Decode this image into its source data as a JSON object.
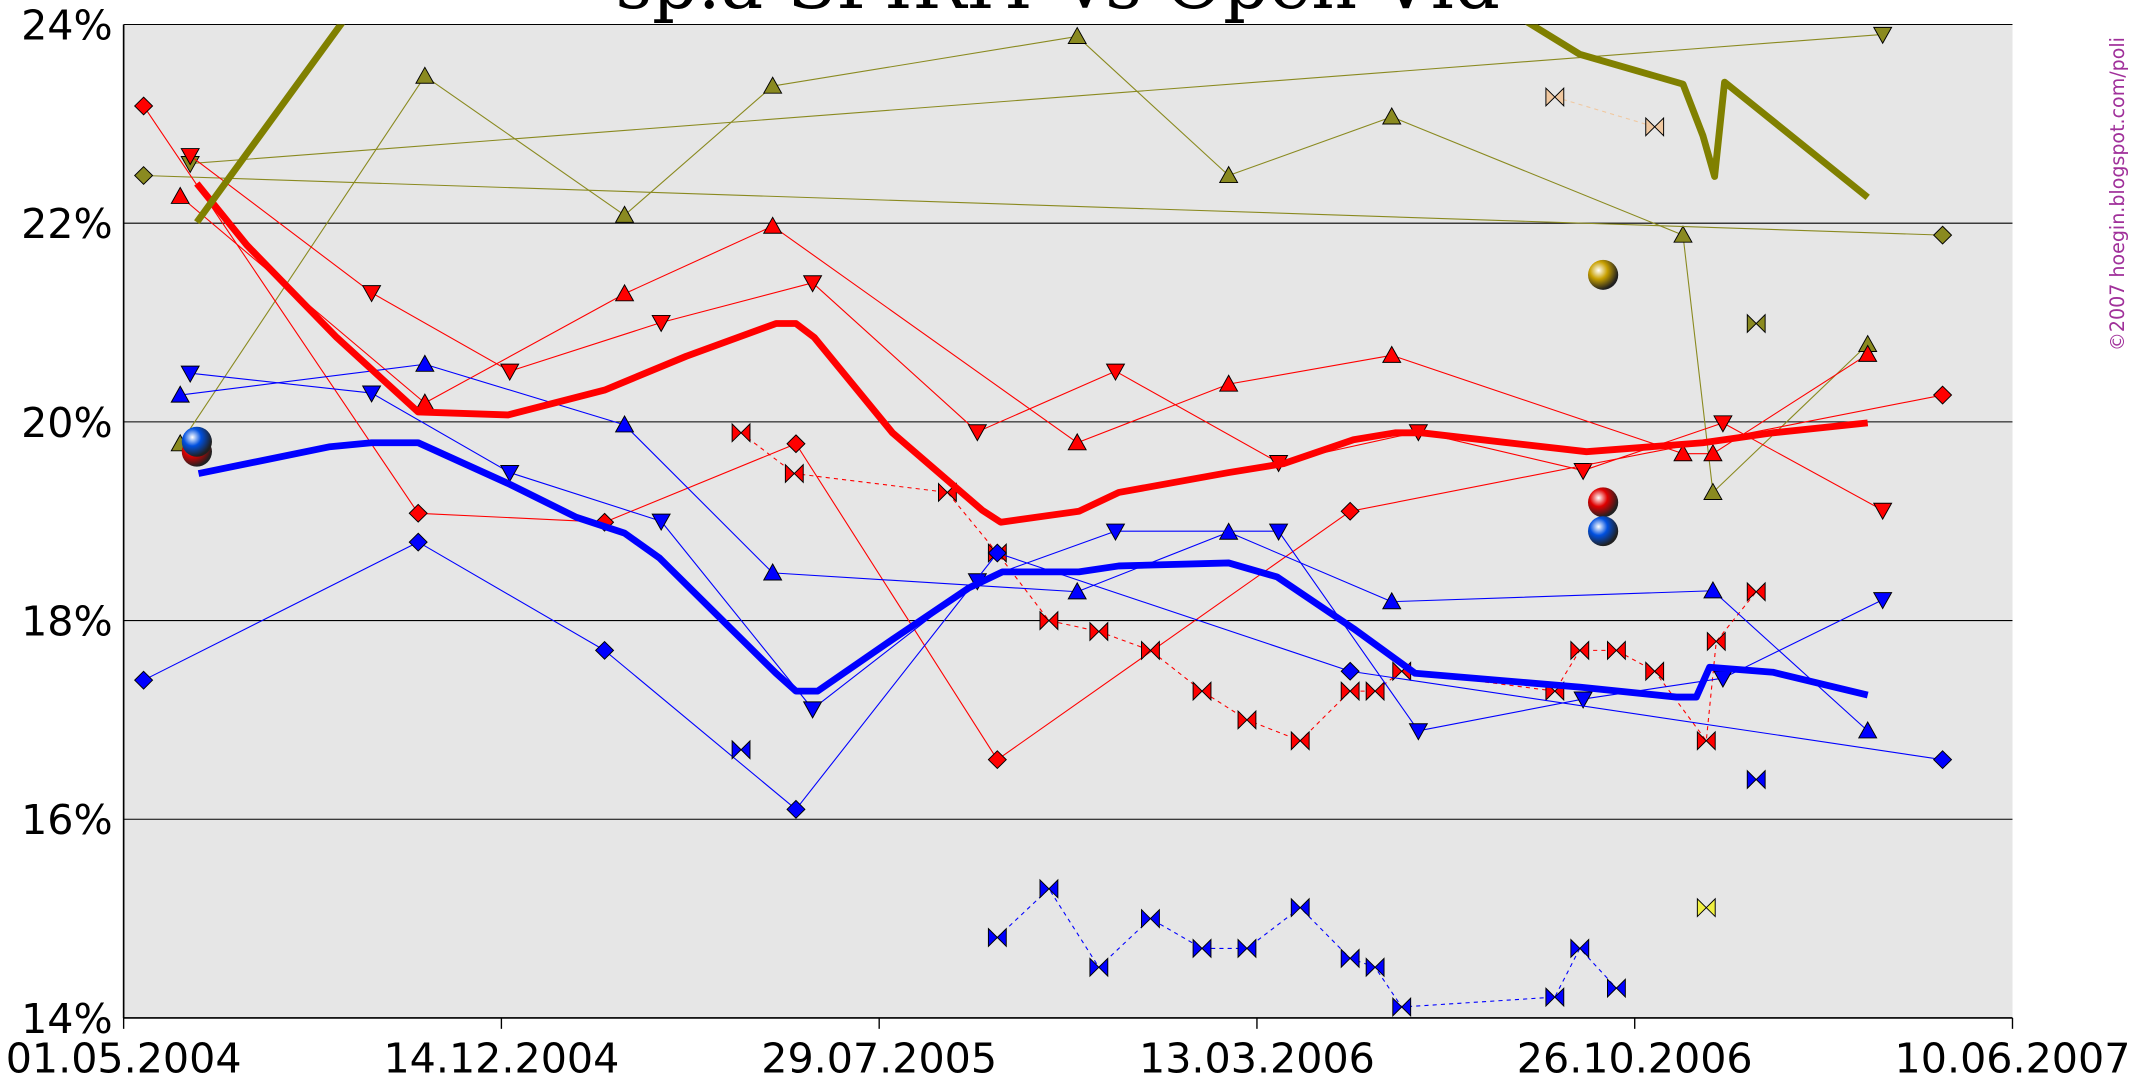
{
  "chart_data": {
    "type": "line",
    "title": "sp.a-SPIRIT vs Open Vld",
    "credit": "©2007 hoegin.blogspot.com/poli",
    "xlim": [
      "01.05.2004",
      "10.06.2007"
    ],
    "xticks": [
      "01.05.2004",
      "14.12.2004",
      "29.07.2005",
      "13.03.2006",
      "26.10.2006",
      "10.06.2007"
    ],
    "ylim": [
      14,
      24
    ],
    "yticks": [
      {
        "value": 14,
        "label": "14%"
      },
      {
        "value": 16,
        "label": "16%"
      },
      {
        "value": 18,
        "label": "18%"
      },
      {
        "value": 20,
        "label": "20%"
      },
      {
        "value": 22,
        "label": "22%"
      },
      {
        "value": 24,
        "label": "24%"
      }
    ],
    "grid": true,
    "series": [
      {
        "color": "#8a8a20",
        "line_width": 0.8,
        "dash": false,
        "marker": "triangle-up",
        "x": [
          "04.06.2004",
          "29.10.2004",
          "26.02.2005",
          "26.05.2005",
          "25.11.2005",
          "24.02.2006",
          "02.06.2006",
          "24.11.2006",
          "12.12.2006",
          "15.03.2007"
        ],
        "values": [
          19.78,
          23.48,
          22.08,
          23.38,
          23.88,
          22.48,
          23.07,
          21.88,
          19.29,
          20.78
        ]
      },
      {
        "color": "#8a8a20",
        "line_width": 0.8,
        "dash": false,
        "marker": "triangle-down",
        "x": [
          "10.06.2004",
          "24.03.2007"
        ],
        "values": [
          22.6,
          23.9
        ]
      },
      {
        "color": "#8a8a20",
        "line_width": 0.8,
        "dash": false,
        "marker": "diamond",
        "x": [
          "13.05.2004",
          "29.04.2007"
        ],
        "values": [
          22.48,
          21.88
        ]
      },
      {
        "color": "#8a8a20",
        "line_width": 0.8,
        "dash": true,
        "marker": "bowtie",
        "x": [
          "07.01.2007"
        ],
        "values": [
          20.99
        ]
      },
      {
        "color": "#f0c8a0",
        "line_width": 0.8,
        "dash": true,
        "marker": "bowtie",
        "x": [
          "08.09.2006",
          "07.11.2006"
        ],
        "values": [
          23.27,
          22.97
        ]
      },
      {
        "color": "#f0f040",
        "line_width": 0.8,
        "dash": false,
        "marker": "bowtie",
        "x": [
          "08.12.2006"
        ],
        "values": [
          15.11
        ]
      },
      {
        "color": "#ff0000",
        "line_width": 0.8,
        "dash": false,
        "marker": "triangle-up",
        "x": [
          "04.06.2004",
          "29.10.2004",
          "26.02.2005",
          "26.05.2005",
          "25.11.2005",
          "24.02.2006",
          "02.06.2006",
          "24.11.2006",
          "12.12.2006",
          "15.03.2007"
        ],
        "values": [
          22.27,
          20.19,
          21.29,
          21.97,
          19.79,
          20.38,
          20.67,
          19.68,
          19.68,
          20.68
        ]
      },
      {
        "color": "#ff0000",
        "line_width": 0.8,
        "dash": false,
        "marker": "triangle-down",
        "x": [
          "10.06.2004",
          "27.09.2004",
          "19.12.2004",
          "20.03.2005",
          "19.06.2005",
          "26.09.2005",
          "18.12.2005",
          "26.03.2006",
          "18.06.2006",
          "25.09.2006",
          "18.12.2006",
          "24.03.2007"
        ],
        "values": [
          22.68,
          21.3,
          20.51,
          21.0,
          21.4,
          19.9,
          20.51,
          19.59,
          19.9,
          19.51,
          19.99,
          19.11
        ]
      },
      {
        "color": "#ff0000",
        "line_width": 0.8,
        "dash": false,
        "marker": "diamond",
        "x": [
          "13.05.2004",
          "25.10.2004",
          "14.02.2005",
          "09.06.2005",
          "08.10.2005",
          "08.05.2006",
          "29.04.2007"
        ],
        "values": [
          23.18,
          19.08,
          18.99,
          19.78,
          16.6,
          19.1,
          20.27
        ]
      },
      {
        "color": "#ff0000",
        "line_width": 0.8,
        "dash": true,
        "marker": "bowtie",
        "x": [
          "07.05.2005",
          "08.06.2005",
          "08.09.2005",
          "08.10.2005",
          "08.11.2005",
          "08.12.2005",
          "08.01.2006",
          "08.02.2006",
          "07.03.2006",
          "08.04.2006",
          "08.05.2006",
          "23.05.2006",
          "08.06.2006",
          "08.09.2006",
          "23.09.2006",
          "15.10.2006",
          "07.11.2006",
          "08.12.2006",
          "14.12.2006",
          "07.01.2007"
        ],
        "values": [
          19.89,
          19.48,
          19.29,
          18.68,
          18.0,
          17.89,
          17.7,
          17.29,
          17.0,
          16.79,
          17.29,
          17.29,
          17.49,
          17.29,
          17.7,
          17.7,
          17.49,
          16.79,
          17.79,
          18.29
        ]
      },
      {
        "color": "#0000ff",
        "line_width": 0.8,
        "dash": false,
        "marker": "triangle-up",
        "x": [
          "04.06.2004",
          "29.10.2004",
          "26.02.2005",
          "26.05.2005",
          "25.11.2005",
          "24.02.2006",
          "02.06.2006",
          "12.12.2006",
          "15.03.2007"
        ],
        "values": [
          20.27,
          20.58,
          19.97,
          18.48,
          18.29,
          18.89,
          18.19,
          18.3,
          16.89
        ]
      },
      {
        "color": "#0000ff",
        "line_width": 0.8,
        "dash": false,
        "marker": "triangle-down",
        "x": [
          "10.06.2004",
          "27.09.2004",
          "19.12.2004",
          "20.03.2005",
          "19.06.2005",
          "26.09.2005",
          "18.12.2005",
          "26.03.2006",
          "18.06.2006",
          "25.09.2006",
          "18.12.2006",
          "24.03.2007"
        ],
        "values": [
          20.49,
          20.29,
          19.49,
          19.0,
          17.11,
          18.4,
          18.9,
          18.9,
          16.89,
          17.21,
          17.42,
          18.21
        ]
      },
      {
        "color": "#0000ff",
        "line_width": 0.8,
        "dash": false,
        "marker": "diamond",
        "x": [
          "13.05.2004",
          "25.10.2004",
          "14.02.2005",
          "09.06.2005",
          "08.10.2005",
          "08.05.2006",
          "29.04.2007"
        ],
        "values": [
          17.4,
          18.79,
          17.7,
          16.1,
          18.68,
          17.49,
          16.6
        ]
      },
      {
        "color": "#0000ff",
        "line_width": 0.8,
        "dash": true,
        "marker": "bowtie",
        "x": [
          "07.05.2005",
          null,
          "08.10.2005",
          "08.11.2005",
          "08.12.2005",
          "08.01.2006",
          "08.02.2006",
          "07.03.2006",
          "08.04.2006",
          "08.05.2006",
          "23.05.2006",
          "08.06.2006",
          "08.09.2006",
          "23.09.2006",
          "15.10.2006",
          null,
          "07.01.2007"
        ],
        "values": [
          16.7,
          null,
          14.81,
          15.3,
          14.51,
          15.0,
          14.7,
          14.7,
          15.11,
          14.6,
          14.51,
          14.11,
          14.21,
          14.7,
          14.3,
          null,
          16.4
        ]
      },
      {
        "color": "#ff0000",
        "line_width": 5,
        "dash": false,
        "marker": "none",
        "x": [
          "14.06.2004",
          "14.07.2004",
          "06.09.2004",
          "25.10.2004",
          "18.12.2004",
          "14.02.2005",
          "04.04.2005",
          "28.05.2005",
          "09.06.2005",
          "20.06.2005",
          "06.08.2005",
          "29.09.2005",
          "10.10.2005",
          "26.11.2005",
          "20.12.2005",
          "24.02.2006",
          "29.03.2006",
          "10.05.2006",
          "04.06.2006",
          "20.06.2006",
          "27.09.2006",
          "06.12.2006",
          "17.01.2007",
          "15.03.2007"
        ],
        "values": [
          22.4,
          21.78,
          20.85,
          20.1,
          20.07,
          20.32,
          20.66,
          20.99,
          20.99,
          20.85,
          19.89,
          19.11,
          18.99,
          19.1,
          19.29,
          19.49,
          19.58,
          19.82,
          19.89,
          19.89,
          19.7,
          19.79,
          19.89,
          19.99
        ]
      },
      {
        "color": "#0000ff",
        "line_width": 5,
        "dash": false,
        "marker": "none",
        "x": [
          "15.06.2004",
          "02.09.2004",
          "27.09.2004",
          "25.10.2004",
          "18.12.2004",
          "28.01.2005",
          "26.02.2005",
          "19.03.2005",
          "29.04.2005",
          "28.05.2005",
          "09.06.2005",
          "22.06.2005",
          "06.08.2005",
          "21.09.2005",
          "11.10.2005",
          "26.11.2005",
          "20.12.2005",
          "24.02.2006",
          "25.03.2006",
          "10.05.2006",
          "16.06.2006",
          "23.09.2006",
          "20.11.2006",
          "02.12.2006",
          "10.12.2006",
          "17.01.2007",
          "15.03.2007"
        ],
        "values": [
          19.48,
          19.75,
          19.79,
          19.79,
          19.38,
          19.04,
          18.88,
          18.63,
          17.95,
          17.47,
          17.29,
          17.29,
          17.81,
          18.33,
          18.49,
          18.49,
          18.55,
          18.58,
          18.44,
          17.92,
          17.47,
          17.33,
          17.23,
          17.23,
          17.53,
          17.48,
          17.25
        ]
      },
      {
        "color": "#808000",
        "line_width": 5,
        "dash": false,
        "marker": "none",
        "x": [
          "14.06.2004",
          "25.09.2004",
          null,
          "21.08.2006",
          "23.09.2006",
          "24.11.2006",
          "06.12.2006",
          "13.12.2006",
          "19.12.2006",
          "15.03.2007"
        ],
        "values": [
          22.01,
          24.38,
          null,
          24.04,
          23.7,
          23.4,
          22.88,
          22.47,
          23.42,
          22.26
        ]
      },
      {
        "color": "#c8a000",
        "line_width": 0,
        "dash": false,
        "marker": "sphere",
        "x": [
          "07.10.2006"
        ],
        "values": [
          21.48
        ]
      },
      {
        "color": "#e00000",
        "line_width": 0,
        "dash": false,
        "marker": "sphere",
        "x": [
          "07.10.2006",
          "14.06.2004"
        ],
        "values": [
          19.19,
          19.7
        ]
      },
      {
        "color": "#0050e0",
        "line_width": 0,
        "dash": false,
        "marker": "sphere",
        "x": [
          "07.10.2006",
          "14.06.2004"
        ],
        "values": [
          18.9,
          19.8
        ]
      }
    ]
  }
}
